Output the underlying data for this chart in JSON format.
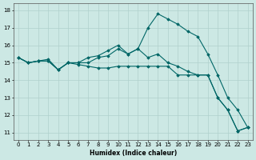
{
  "xlabel": "Humidex (Indice chaleur)",
  "background_color": "#cce8e4",
  "grid_color": "#b0d0cc",
  "line_color": "#006666",
  "xlim": [
    -0.5,
    23.5
  ],
  "ylim": [
    10.6,
    18.4
  ],
  "xticks": [
    0,
    1,
    2,
    3,
    4,
    5,
    6,
    7,
    8,
    9,
    10,
    11,
    12,
    13,
    14,
    15,
    16,
    17,
    18,
    19,
    20,
    21,
    22,
    23
  ],
  "yticks": [
    11,
    12,
    13,
    14,
    15,
    16,
    17,
    18
  ],
  "series": [
    {
      "x": [
        0,
        1,
        2,
        3,
        4,
        5,
        6,
        7,
        8,
        9,
        10,
        11,
        12,
        13,
        14,
        15,
        16,
        17,
        18,
        19,
        20,
        21,
        22,
        23
      ],
      "y": [
        15.3,
        15.0,
        15.1,
        15.1,
        14.6,
        15.0,
        14.9,
        14.8,
        14.7,
        14.7,
        14.8,
        14.8,
        14.8,
        14.8,
        14.8,
        14.8,
        14.3,
        14.3,
        14.3,
        14.3,
        13.0,
        12.3,
        11.1,
        11.3
      ]
    },
    {
      "x": [
        0,
        1,
        2,
        3,
        4,
        5,
        6,
        7,
        8,
        9,
        10,
        11,
        12,
        13,
        14,
        15,
        16,
        17,
        18,
        19,
        20,
        21,
        22,
        23
      ],
      "y": [
        15.3,
        15.0,
        15.1,
        15.2,
        14.6,
        15.0,
        15.0,
        15.0,
        15.3,
        15.4,
        15.8,
        15.5,
        15.8,
        15.3,
        15.5,
        15.0,
        14.8,
        14.5,
        14.3,
        14.3,
        13.0,
        12.3,
        11.1,
        11.3
      ]
    },
    {
      "x": [
        0,
        1,
        2,
        3,
        4,
        5,
        6,
        7,
        8,
        9,
        10,
        11,
        12,
        13,
        14,
        15,
        16,
        17,
        18,
        19,
        20,
        21,
        22,
        23
      ],
      "y": [
        15.3,
        15.0,
        15.1,
        15.1,
        14.6,
        15.0,
        15.0,
        15.3,
        15.4,
        15.7,
        16.0,
        15.5,
        15.8,
        17.0,
        17.8,
        17.5,
        17.2,
        16.8,
        16.5,
        15.5,
        14.3,
        13.0,
        12.3,
        11.3
      ]
    }
  ]
}
